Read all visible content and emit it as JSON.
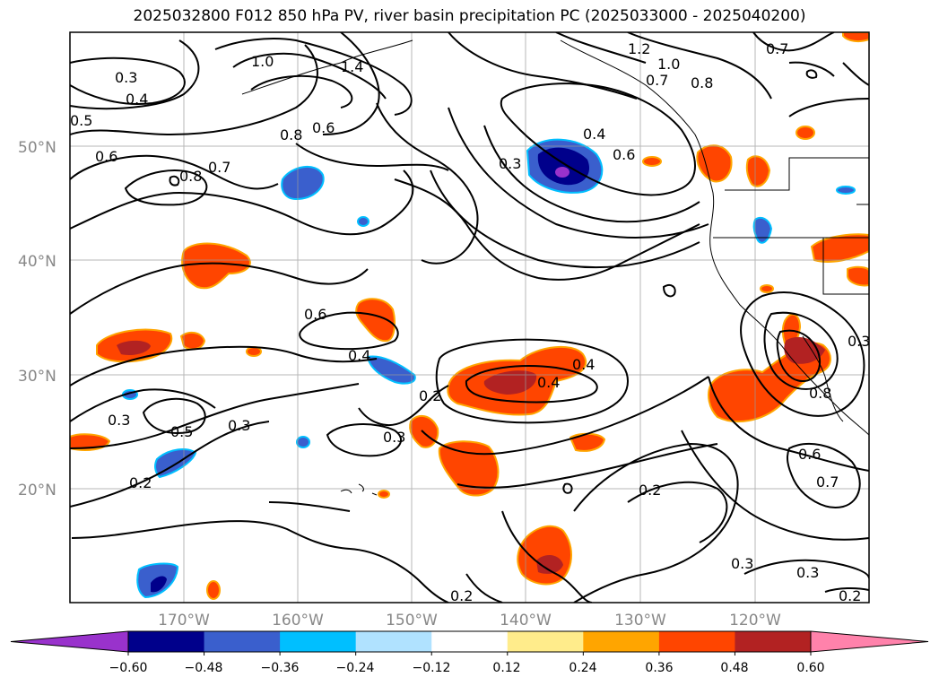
{
  "title": "2025032800 F012 850 hPa PV, river basin precipitation PC (2025033000 - 2025040200)",
  "axes": {
    "lat_labels": [
      "50°N",
      "40°N",
      "30°N",
      "20°N"
    ],
    "lon_labels": [
      "170°W",
      "160°W",
      "150°W",
      "140°W",
      "130°W",
      "120°W"
    ]
  },
  "colorbar": {
    "ticks": [
      "−0.60",
      "−0.48",
      "−0.36",
      "−0.24",
      "−0.12",
      "0.12",
      "0.24",
      "0.36",
      "0.48",
      "0.60"
    ],
    "colors": [
      "#9932cc",
      "#00008b",
      "#3a5fcd",
      "#00bfff",
      "#b0e2ff",
      "#ffffff",
      "#ffec8b",
      "#ffa500",
      "#ff4500",
      "#b22222",
      "#ff82ab"
    ]
  },
  "contour_labels": [
    "0.3",
    "0.4",
    "0.5",
    "0.6",
    "0.8",
    "0.7",
    "1.0",
    "1.4",
    "0.8",
    "0.6",
    "1.2",
    "1.0",
    "0.7",
    "0.8",
    "0.7",
    "0.4",
    "0.6",
    "0.3",
    "0.6",
    "0.4",
    "0.2",
    "0.3",
    "0.4",
    "0.4",
    "0.3",
    "0.5",
    "0.3",
    "0.2",
    "0.2",
    "0.3",
    "0.3",
    "0.2",
    "0.6",
    "0.7",
    "0.2",
    "0.8",
    "0.3"
  ],
  "map_data": {
    "variable": "850 hPa PV",
    "shading": "river basin precipitation PC",
    "lon_range": [
      -180,
      -110
    ],
    "lat_range": [
      10,
      60
    ]
  }
}
